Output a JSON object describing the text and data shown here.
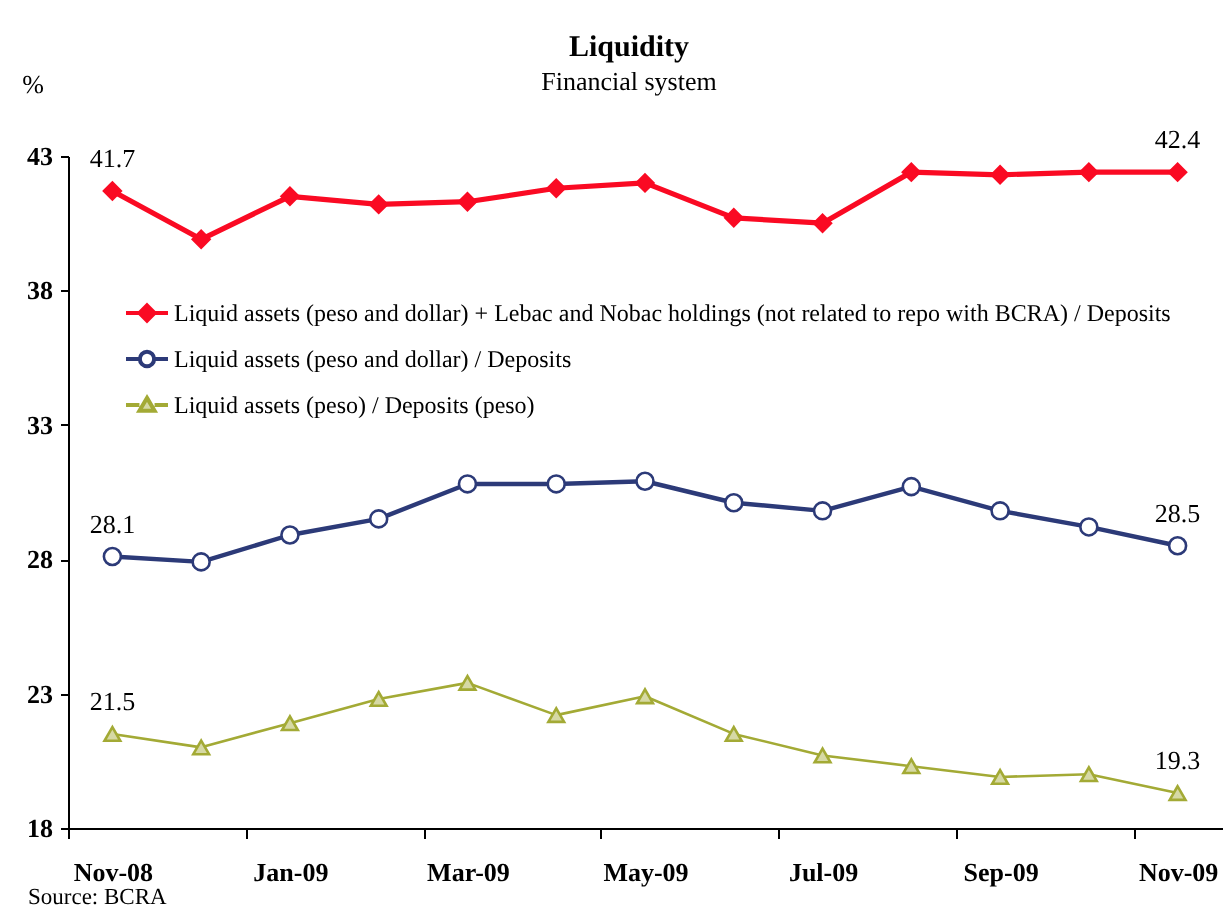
{
  "chart_data": {
    "type": "line",
    "title": "Liquidity",
    "subtitle": "Financial system",
    "ylabel": "%",
    "categories": [
      "Nov-08",
      null,
      "Jan-09",
      null,
      "Mar-09",
      null,
      "May-09",
      null,
      "Jul-09",
      null,
      "Sep-09",
      null,
      "Nov-09"
    ],
    "ylim": [
      18,
      43
    ],
    "yticks": [
      18,
      23,
      28,
      33,
      38,
      43
    ],
    "legend": "top left",
    "annotations": [
      "Source: BCRA"
    ],
    "series": [
      {
        "name": "Liquid assets (peso and dollar) + Lebac and Nobac holdings (not related to repo with BCRA) / Deposits",
        "color": "#fa0a23",
        "marker": "diamond",
        "values": [
          41.7,
          39.9,
          41.5,
          41.2,
          41.3,
          41.8,
          42.0,
          40.7,
          40.5,
          42.4,
          42.3,
          42.4,
          42.4
        ],
        "value_labels": [
          "41.7",
          null,
          null,
          null,
          null,
          null,
          null,
          null,
          null,
          null,
          null,
          null,
          "42.4"
        ]
      },
      {
        "name": "Liquid assets (peso and dollar) / Deposits",
        "color": "#2c3a78",
        "marker": "circle",
        "values": [
          28.1,
          27.9,
          28.9,
          29.5,
          30.8,
          30.8,
          30.9,
          30.1,
          29.8,
          30.7,
          29.8,
          29.2,
          28.5
        ],
        "value_labels": [
          "28.1",
          null,
          null,
          null,
          null,
          null,
          null,
          null,
          null,
          null,
          null,
          null,
          "28.5"
        ]
      },
      {
        "name": "Liquid assets (peso) / Deposits (peso)",
        "color": "#a3aa35",
        "marker": "triangle",
        "values": [
          21.5,
          21.0,
          21.9,
          22.8,
          23.4,
          22.2,
          22.9,
          21.5,
          20.7,
          20.3,
          19.9,
          20.0,
          19.3
        ],
        "value_labels": [
          "21.5",
          null,
          null,
          null,
          null,
          null,
          null,
          null,
          null,
          null,
          null,
          null,
          "19.3"
        ]
      }
    ]
  }
}
